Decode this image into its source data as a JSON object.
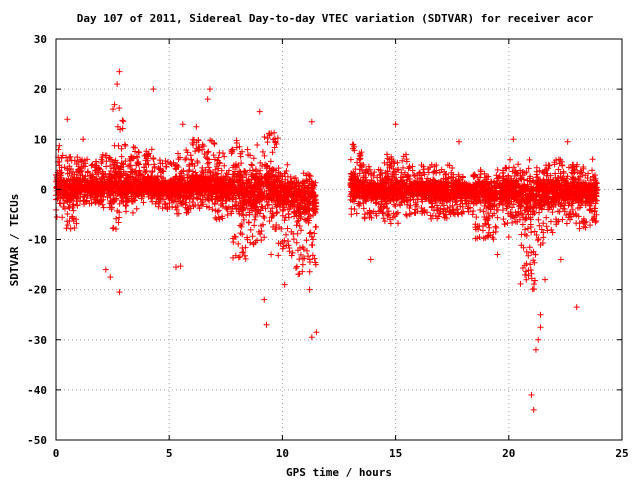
{
  "chart_data": {
    "type": "scatter",
    "title": "Day 107 of 2011, Sidereal Day-to-day VTEC variation (SDTVAR) for receiver acor",
    "xlabel": "GPS time / hours",
    "ylabel": "SDTVAR / TECUs",
    "xlim": [
      0,
      25
    ],
    "ylim": [
      -50,
      30
    ],
    "x_ticks": [
      "0",
      "5",
      "10",
      "15",
      "20",
      "25"
    ],
    "y_ticks": [
      "30",
      "20",
      "10",
      "0",
      "-10",
      "-20",
      "-30",
      "-40",
      "-50"
    ],
    "grid": true,
    "marker": "plus",
    "color": "#ff0000",
    "bands": [
      [
        0.0,
        0.3,
        -6,
        10
      ],
      [
        0.3,
        1.0,
        -8,
        7
      ],
      [
        1.0,
        2.0,
        -3,
        6
      ],
      [
        2.0,
        2.5,
        -4,
        7
      ],
      [
        2.5,
        3.0,
        -9,
        17
      ],
      [
        3.0,
        3.6,
        -5,
        9
      ],
      [
        3.6,
        4.5,
        -3,
        8
      ],
      [
        4.5,
        5.3,
        -4,
        6
      ],
      [
        5.3,
        6.0,
        -5,
        8
      ],
      [
        6.0,
        7.0,
        -4,
        10
      ],
      [
        7.0,
        7.8,
        -6,
        8
      ],
      [
        7.8,
        8.5,
        -14,
        10
      ],
      [
        8.5,
        9.2,
        -11,
        9
      ],
      [
        9.2,
        9.8,
        -8,
        14
      ],
      [
        9.8,
        10.5,
        -14,
        5
      ],
      [
        10.5,
        11.5,
        -18,
        3
      ],
      [
        13.0,
        13.5,
        -5,
        9
      ],
      [
        13.5,
        14.5,
        -6,
        5
      ],
      [
        14.5,
        15.5,
        -7,
        7
      ],
      [
        15.5,
        16.5,
        -5,
        5
      ],
      [
        16.5,
        17.5,
        -6,
        5
      ],
      [
        17.5,
        18.5,
        -5,
        3
      ],
      [
        18.5,
        19.5,
        -10,
        4
      ],
      [
        19.5,
        20.5,
        -7,
        6
      ],
      [
        20.5,
        21.2,
        -20,
        6
      ],
      [
        21.2,
        22.0,
        -12,
        5
      ],
      [
        22.0,
        23.0,
        -7,
        6
      ],
      [
        23.0,
        23.9,
        -8,
        5
      ]
    ],
    "outliers": [
      [
        0.5,
        14
      ],
      [
        1.2,
        10
      ],
      [
        2.2,
        -16
      ],
      [
        2.4,
        -17.5
      ],
      [
        2.7,
        21
      ],
      [
        2.8,
        23.5
      ],
      [
        2.8,
        -20.5
      ],
      [
        4.3,
        20
      ],
      [
        5.3,
        -15.5
      ],
      [
        5.5,
        -15.3
      ],
      [
        5.6,
        13
      ],
      [
        6.2,
        12.5
      ],
      [
        6.7,
        18
      ],
      [
        6.8,
        20
      ],
      [
        9.0,
        15.5
      ],
      [
        9.2,
        -22
      ],
      [
        9.3,
        -27
      ],
      [
        9.5,
        -13
      ],
      [
        10.1,
        -19
      ],
      [
        11.3,
        -29.5
      ],
      [
        11.5,
        -28.5
      ],
      [
        11.2,
        -20
      ],
      [
        11.3,
        13.5
      ],
      [
        13.9,
        -14
      ],
      [
        15.0,
        13
      ],
      [
        17.8,
        9.5
      ],
      [
        19.5,
        -13
      ],
      [
        20.2,
        10
      ],
      [
        20.0,
        -9.5
      ],
      [
        21.0,
        -41
      ],
      [
        21.1,
        -44
      ],
      [
        21.2,
        -32
      ],
      [
        21.3,
        -30
      ],
      [
        21.4,
        -27.5
      ],
      [
        21.4,
        -25
      ],
      [
        21.6,
        -18
      ],
      [
        22.3,
        -14
      ],
      [
        22.6,
        9.5
      ],
      [
        23.0,
        -23.5
      ],
      [
        23.7,
        6
      ]
    ]
  }
}
